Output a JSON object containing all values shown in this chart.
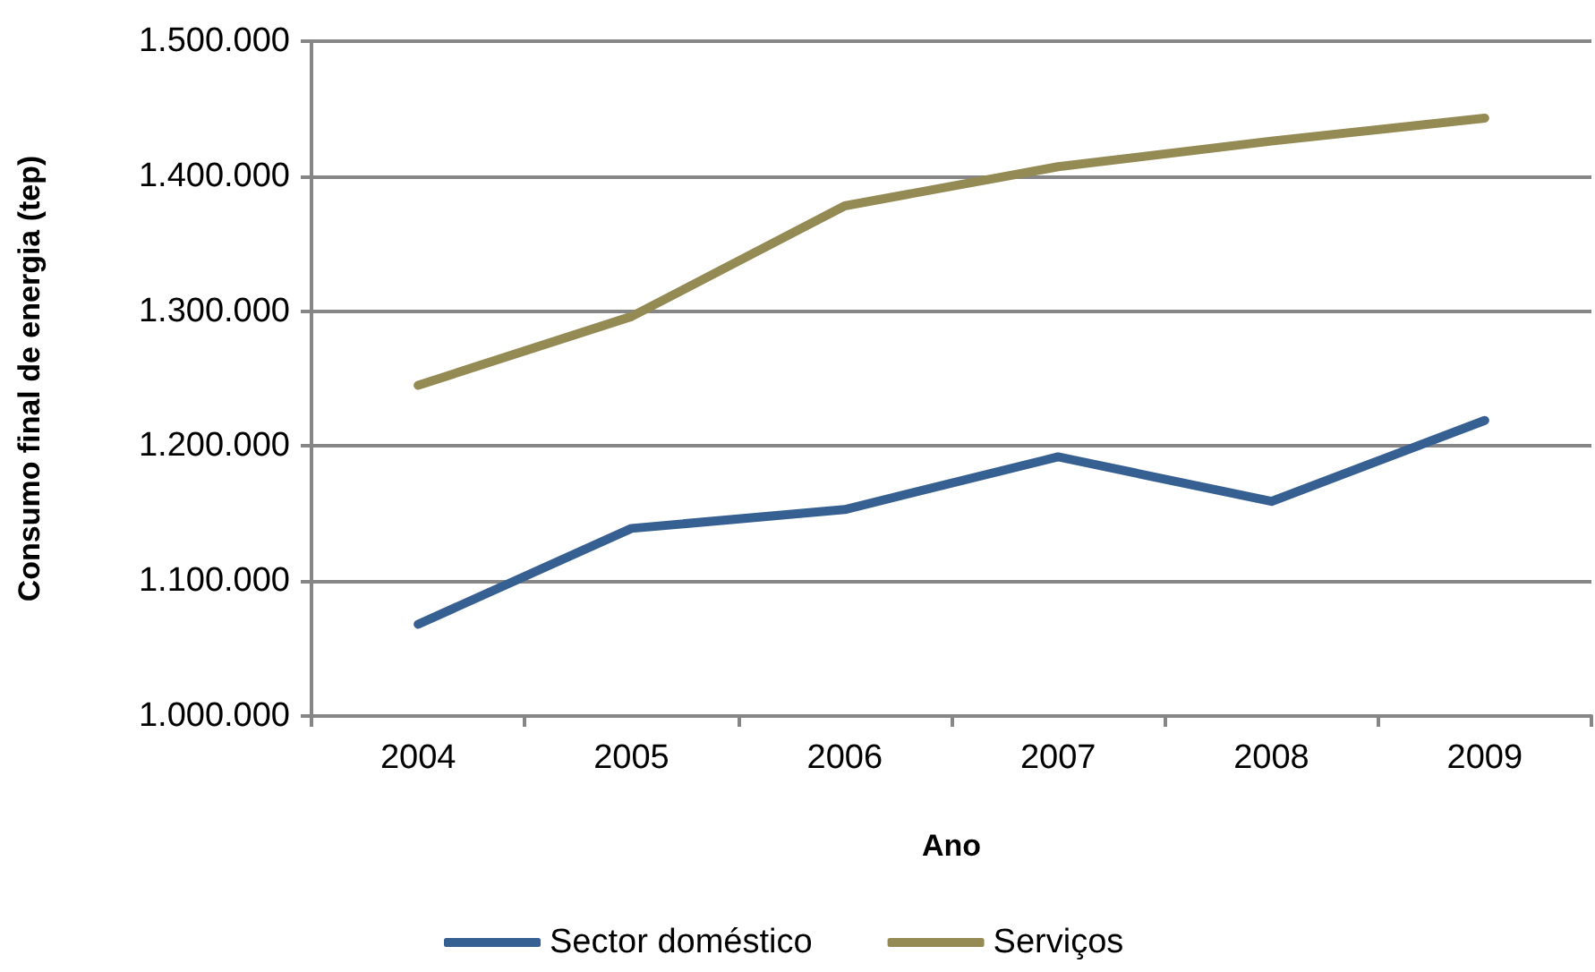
{
  "chart_data": {
    "type": "line",
    "xlabel": "Ano",
    "ylabel": "Consumo final de energia (tep)",
    "categories": [
      "2004",
      "2005",
      "2006",
      "2007",
      "2008",
      "2009"
    ],
    "series": [
      {
        "name": "Sector doméstico",
        "color": "#376092",
        "values": [
          1068000,
          1139000,
          1153000,
          1192000,
          1159000,
          1219000
        ]
      },
      {
        "name": "Serviços",
        "color": "#948a54",
        "values": [
          1245000,
          1296000,
          1378000,
          1407000,
          1426000,
          1443000
        ]
      }
    ],
    "ylim": [
      1000000,
      1500000
    ],
    "yticks": [
      {
        "value": 1000000,
        "label": "1.000.000"
      },
      {
        "value": 1100000,
        "label": "1.100.000"
      },
      {
        "value": 1200000,
        "label": "1.200.000"
      },
      {
        "value": 1300000,
        "label": "1.300.000"
      },
      {
        "value": 1400000,
        "label": "1.400.000"
      },
      {
        "value": 1500000,
        "label": "1.500.000"
      }
    ],
    "grid": "y",
    "legend": "bottom",
    "marker": "none",
    "line_style": "solid"
  }
}
